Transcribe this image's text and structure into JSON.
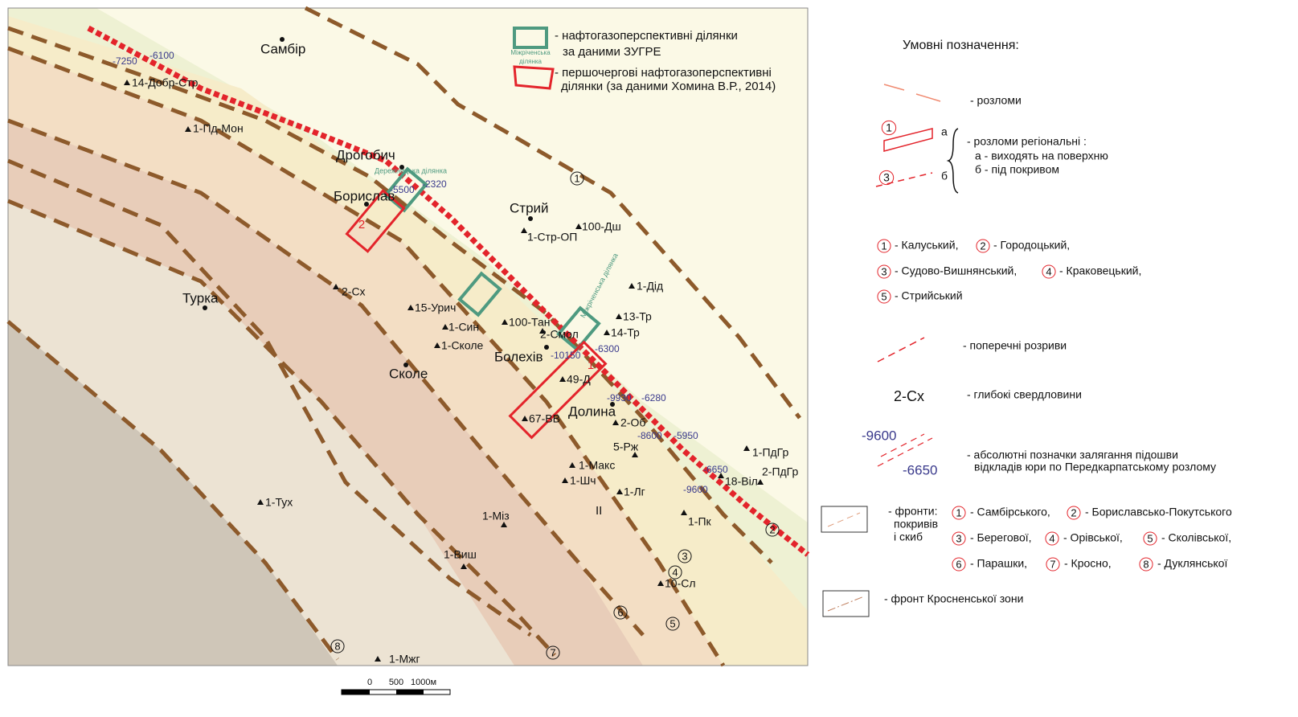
{
  "map": {
    "cities": [
      "Самбір",
      "Дрогобич",
      "Борислав",
      "Стрий",
      "Турка",
      "Сколе",
      "Болехів",
      "Долина"
    ],
    "wells": [
      "14-Добр-Стр",
      "1-Пд-Мон",
      "1-Стр-ОП",
      "100-Дш",
      "2-Сх",
      "15-Урич",
      "1-Син",
      "1-Сколе",
      "100-Тан",
      "2-Смол",
      "1-Дід",
      "13-Тр",
      "14-Тр",
      "49-Д",
      "67-ВВ",
      "2-Об",
      "5-Рж",
      "1-Макс",
      "1-Шч",
      "1-Лг",
      "1-ПдГр",
      "2-ПдГр",
      "18-Віл",
      "1-Пк",
      "1-Тух",
      "1-Міз",
      "1-Виш",
      "10-Сл",
      "1-Мжг"
    ],
    "depths": [
      "-7250",
      "-6100",
      "-5500",
      "-2320",
      "-10150",
      "-6300",
      "-9930",
      "-6280",
      "-8600",
      "-5950",
      "-6650",
      "-9600"
    ],
    "front_numbers": [
      "1",
      "2",
      "3",
      "4",
      "5",
      "6",
      "7",
      "8"
    ],
    "box_numbers": [
      "2",
      "1"
    ],
    "zone_label": "II",
    "area_labels": [
      "Дережницька ділянка",
      "Міжріченська ділянка"
    ]
  },
  "inset_legend": {
    "green_sample": [
      "Міжріченська",
      "ділянка"
    ],
    "green_text": [
      "- нафтогазоперспективні ділянки",
      "за даними ЗУГРЕ"
    ],
    "red_text": [
      "- першочергові нафтогазоперспективні",
      "ділянки (за даними Хомина В.Р., 2014)"
    ]
  },
  "legend": {
    "title": "Умовні позначення:",
    "faults": "- розломи",
    "regional_marks": [
      "1",
      "а",
      "3",
      "б"
    ],
    "regional_text": [
      "- розломи регіональні :",
      "а - виходять на поверхню",
      "б - під покривом"
    ],
    "regional_names": [
      [
        "1",
        "- Калуський,"
      ],
      [
        "2",
        "- Городоцький,"
      ],
      [
        "3",
        "- Судово-Вишнянський,"
      ],
      [
        "4",
        "- Краковецький,"
      ],
      [
        "5",
        "- Стрийський"
      ]
    ],
    "cross_faults": "- поперечні розриви",
    "well_sample": "2-Сх",
    "wells": "- глибокі свердловини",
    "depth_samples": [
      "-9600",
      "-6650"
    ],
    "depth_text": [
      "- абсолютні позначки залягання підошви",
      "відкладів юри по Передкарпатському розлому"
    ],
    "fronts_text": [
      "- фронти:",
      "покривів",
      "і скиб"
    ],
    "fronts": [
      [
        "1",
        "- Самбірського,"
      ],
      [
        "2",
        "- Бориславсько-Покутського"
      ],
      [
        "3",
        "- Берегової,"
      ],
      [
        "4",
        "- Орівської,"
      ],
      [
        "5",
        "- Сколівської,"
      ],
      [
        "6",
        "- Парашки,"
      ],
      [
        "7",
        "- Кросно,"
      ],
      [
        "8",
        "- Дуклянської"
      ]
    ],
    "krosno": "- фронт Кросненської зони"
  },
  "scale": [
    "0",
    "500",
    "1000м"
  ]
}
